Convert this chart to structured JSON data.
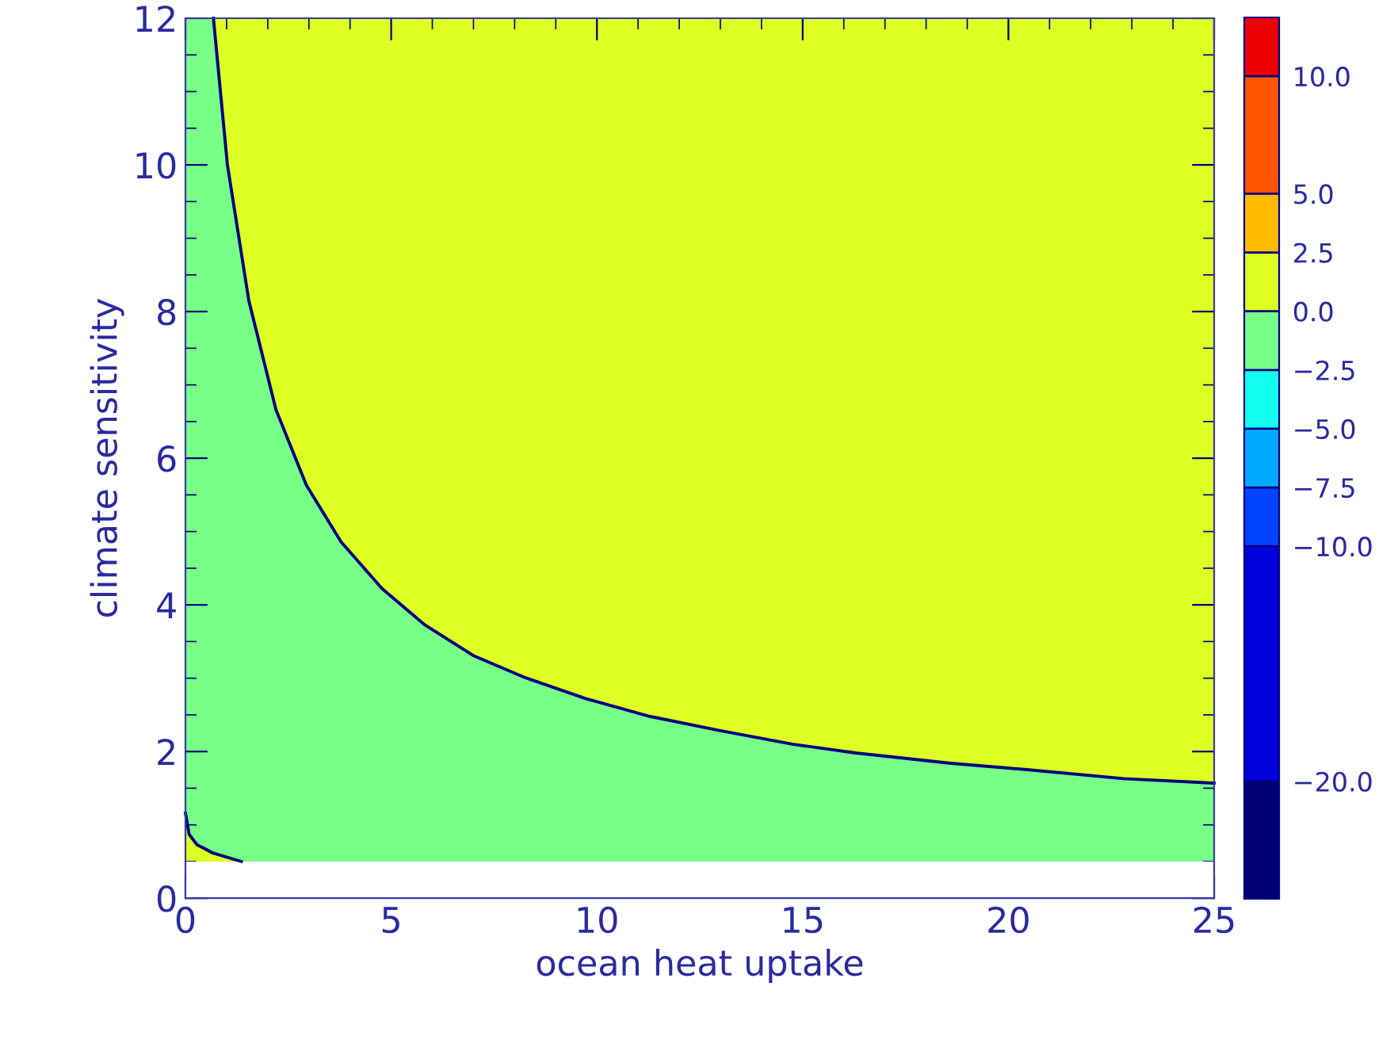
{
  "chart_data": {
    "type": "area",
    "xlabel": "ocean heat uptake",
    "ylabel": "climate sensitivity",
    "xlim": [
      0,
      25
    ],
    "ylim": [
      0,
      12
    ],
    "xticks": [
      0,
      5,
      10,
      15,
      20,
      25
    ],
    "yticks": [
      0,
      2,
      4,
      6,
      8,
      10,
      12
    ],
    "bands": [
      {
        "axis": "y",
        "from": 0.5,
        "to": 12,
        "color": "#ddff22"
      },
      {
        "axis": "y",
        "from": 0,
        "to": 0.5,
        "color": "#ffffff"
      }
    ],
    "series": [
      {
        "color": "#77ff88",
        "x": [
          0,
          0.68,
          1.02,
          1.54,
          2.2,
          2.94,
          3.78,
          4.78,
          5.81,
          6.99,
          8.2,
          9.74,
          11.28,
          12.95,
          14.75,
          16.29,
          18.6,
          20.5,
          22.8,
          24.96,
          25
        ],
        "values": [
          12,
          12,
          10.0,
          8.15,
          6.66,
          5.63,
          4.86,
          4.22,
          3.73,
          3.31,
          3.02,
          2.72,
          2.48,
          2.29,
          2.1,
          1.98,
          1.84,
          1.75,
          1.63,
          1.57,
          1.57
        ]
      },
      {
        "color": "#ddff22",
        "x": [
          0,
          0.09,
          0.28,
          0.65,
          1.36
        ],
        "values": [
          1.16,
          0.87,
          0.73,
          0.62,
          0.5
        ]
      },
      {
        "type": "line",
        "color": "#000080",
        "x": [
          0.68,
          1.02,
          1.54,
          2.2,
          2.94,
          3.78,
          4.78,
          5.81,
          6.99,
          8.2,
          9.74,
          11.28,
          12.95,
          14.75,
          16.29,
          18.6,
          20.5,
          22.8,
          24.96,
          25
        ],
        "values": [
          12,
          10.0,
          8.15,
          6.66,
          5.63,
          4.86,
          4.22,
          3.73,
          3.31,
          3.02,
          2.72,
          2.48,
          2.29,
          2.1,
          1.98,
          1.84,
          1.75,
          1.63,
          1.57,
          1.57
        ]
      },
      {
        "type": "line",
        "color": "#000080",
        "x": [
          0,
          0.09,
          0.28,
          0.65,
          1.36
        ],
        "values": [
          1.16,
          0.87,
          0.73,
          0.62,
          0.5
        ]
      }
    ],
    "clim": [
      -25,
      12.5
    ],
    "cticks": [
      {
        "value": -20,
        "label": "−20.0"
      },
      {
        "value": -10,
        "label": "−10.0"
      },
      {
        "value": -7.5,
        "label": "−7.5"
      },
      {
        "value": -5,
        "label": "−5.0"
      },
      {
        "value": -2.5,
        "label": "−2.5"
      },
      {
        "value": 0,
        "label": "0.0"
      },
      {
        "value": 2.5,
        "label": "2.5"
      },
      {
        "value": 5,
        "label": "5.0"
      },
      {
        "value": 10,
        "label": "10.0"
      }
    ],
    "colors": [
      "#000077",
      "#0000dd",
      "#0044ff",
      "#00aaff",
      "#11ffee",
      "#77ff88",
      "#ddff22",
      "#ffbb00",
      "#ff5500",
      "#ee0000"
    ],
    "grid": false
  }
}
